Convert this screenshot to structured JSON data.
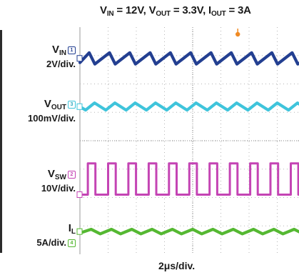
{
  "title": {
    "vin_sym": "V",
    "vin_sub": "IN",
    "vin_val": " = 12V, ",
    "vout_sym": "V",
    "vout_sub": "OUT",
    "vout_val": " = 3.3V, ",
    "iout_sym": "I",
    "iout_sub": "OUT",
    "iout_val": " = 3A"
  },
  "chart_data": {
    "type": "line",
    "xlabel": "2μs/div.",
    "x_divisions": 8,
    "y_divisions": 8,
    "grid": true,
    "series": [
      {
        "name_sym": "V",
        "name_sub": "IN",
        "scale": "2V/div.",
        "marker": "1",
        "color": "#233f91",
        "waveform": "sawtooth ripple",
        "baseline_div": 6.9,
        "ripple_div": 0.3,
        "t": [
          0,
          0.33,
          0.53,
          1.05,
          1.25,
          1.77,
          1.97,
          2.49,
          2.69,
          3.21,
          3.41,
          3.93,
          4.13,
          4.65,
          4.85,
          5.37,
          5.57,
          6.09,
          6.29,
          6.81,
          7.01,
          7.53,
          7.73,
          8.0
        ],
        "v": [
          6.75,
          7.1,
          6.7,
          7.1,
          6.7,
          7.1,
          6.7,
          7.1,
          6.7,
          7.1,
          6.7,
          7.1,
          6.7,
          7.1,
          6.7,
          7.1,
          6.7,
          7.1,
          6.7,
          7.1,
          6.7,
          7.1,
          6.7,
          6.85
        ]
      },
      {
        "name_sym": "V",
        "name_sub": "OUT",
        "scale": "100mV/div.",
        "marker": "3",
        "color": "#3fc4db",
        "waveform": "triangular ripple",
        "baseline_div": 5.2,
        "ripple_div": 0.25,
        "t": [
          0,
          0.2,
          0.52,
          0.92,
          1.24,
          1.64,
          1.96,
          2.36,
          2.68,
          3.08,
          3.4,
          3.8,
          4.12,
          4.52,
          4.84,
          5.24,
          5.56,
          5.96,
          6.28,
          6.68,
          7.0,
          7.4,
          7.72,
          8.0
        ],
        "v": [
          5.2,
          5.08,
          5.33,
          5.08,
          5.33,
          5.08,
          5.33,
          5.08,
          5.33,
          5.08,
          5.33,
          5.08,
          5.33,
          5.08,
          5.33,
          5.08,
          5.33,
          5.08,
          5.33,
          5.08,
          5.33,
          5.08,
          5.33,
          5.15
        ]
      },
      {
        "name_sym": "V",
        "name_sub": "SW",
        "scale": "10V/div.",
        "marker": "2",
        "color": "#c444b4",
        "waveform": "square pulses",
        "high_div": 3.2,
        "low_div": 2.1,
        "pulses": [
          [
            0.28,
            0.55
          ],
          [
            1.0,
            1.27
          ],
          [
            1.72,
            1.99
          ],
          [
            2.44,
            2.71
          ],
          [
            3.16,
            3.43
          ],
          [
            3.88,
            4.15
          ],
          [
            4.6,
            4.87
          ],
          [
            5.32,
            5.59
          ],
          [
            6.04,
            6.31
          ],
          [
            6.76,
            7.03
          ],
          [
            7.48,
            7.75
          ]
        ]
      },
      {
        "name_sym": "I",
        "name_sub": "L",
        "scale": "5A/div.",
        "marker": "4",
        "color": "#55b832",
        "waveform": "triangular ripple",
        "baseline_div": 0.8,
        "ripple_div": 0.15,
        "t": [
          0,
          0.4,
          0.72,
          1.12,
          1.44,
          1.84,
          2.16,
          2.56,
          2.88,
          3.28,
          3.6,
          4.0,
          4.32,
          4.72,
          5.04,
          5.44,
          5.76,
          6.16,
          6.48,
          6.88,
          7.2,
          7.6,
          7.92,
          8.0
        ],
        "v": [
          0.75,
          0.88,
          0.72,
          0.88,
          0.72,
          0.88,
          0.72,
          0.88,
          0.72,
          0.88,
          0.72,
          0.88,
          0.72,
          0.88,
          0.72,
          0.88,
          0.72,
          0.88,
          0.72,
          0.88,
          0.72,
          0.88,
          0.72,
          0.75
        ]
      }
    ],
    "trigger_marker_color": "#f08a24"
  }
}
